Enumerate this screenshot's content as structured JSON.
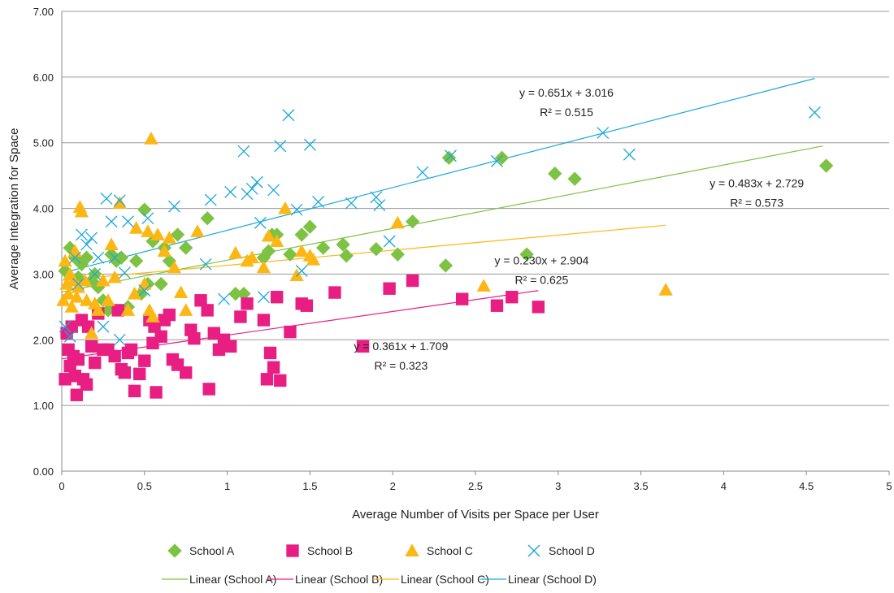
{
  "chart_data": {
    "type": "scatter",
    "title": "",
    "xlabel": "Average Number of Visits per Space per User",
    "ylabel": "Average Integration for Space",
    "xlim": [
      0,
      5
    ],
    "ylim": [
      0,
      7
    ],
    "x_ticks": [
      0,
      0.5,
      1,
      1.5,
      2,
      2.5,
      3,
      3.5,
      4,
      4.5,
      5
    ],
    "x_tick_labels": [
      "0",
      "0.5",
      "1",
      "1.5",
      "2",
      "2.5",
      "3",
      "3.5",
      "4",
      "4.5",
      "5"
    ],
    "y_ticks": [
      0,
      1,
      2,
      3,
      4,
      5,
      6,
      7
    ],
    "y_tick_labels": [
      "0.00",
      "1.00",
      "2.00",
      "3.00",
      "4.00",
      "5.00",
      "6.00",
      "7.00"
    ],
    "grid": "horizontal",
    "legend_position": "bottom",
    "series": [
      {
        "name": "School A",
        "marker": "diamond",
        "color": "#7dc242",
        "points": [
          [
            0.02,
            3.05
          ],
          [
            0.05,
            3.4
          ],
          [
            0.08,
            3.25
          ],
          [
            0.1,
            2.95
          ],
          [
            0.12,
            3.15
          ],
          [
            0.15,
            3.25
          ],
          [
            0.18,
            2.9
          ],
          [
            0.2,
            3.0
          ],
          [
            0.22,
            2.8
          ],
          [
            0.25,
            2.6
          ],
          [
            0.28,
            2.45
          ],
          [
            0.3,
            3.3
          ],
          [
            0.33,
            3.2
          ],
          [
            0.36,
            3.25
          ],
          [
            0.4,
            2.5
          ],
          [
            0.45,
            3.2
          ],
          [
            0.48,
            2.7
          ],
          [
            0.5,
            3.98
          ],
          [
            0.52,
            2.85
          ],
          [
            0.55,
            3.5
          ],
          [
            0.6,
            2.85
          ],
          [
            0.62,
            3.4
          ],
          [
            0.65,
            3.2
          ],
          [
            0.7,
            3.6
          ],
          [
            0.75,
            3.4
          ],
          [
            0.88,
            3.85
          ],
          [
            1.05,
            2.7
          ],
          [
            1.1,
            2.7
          ],
          [
            1.22,
            3.25
          ],
          [
            1.25,
            3.35
          ],
          [
            1.27,
            3.6
          ],
          [
            1.3,
            3.6
          ],
          [
            1.38,
            3.3
          ],
          [
            1.45,
            3.6
          ],
          [
            1.5,
            3.72
          ],
          [
            1.58,
            3.4
          ],
          [
            1.7,
            3.45
          ],
          [
            1.72,
            3.28
          ],
          [
            1.9,
            3.38
          ],
          [
            2.03,
            3.3
          ],
          [
            2.12,
            3.8
          ],
          [
            2.32,
            3.13
          ],
          [
            2.34,
            4.77
          ],
          [
            2.66,
            4.77
          ],
          [
            2.81,
            3.3
          ],
          [
            2.98,
            4.53
          ],
          [
            3.1,
            4.45
          ],
          [
            4.62,
            4.65
          ]
        ],
        "trendline": {
          "slope": 0.483,
          "intercept": 2.729,
          "x_range": [
            0,
            4.6
          ]
        }
      },
      {
        "name": "School B",
        "marker": "square",
        "color": "#e91e83",
        "points": [
          [
            0.02,
            1.4
          ],
          [
            0.03,
            2.1
          ],
          [
            0.04,
            1.85
          ],
          [
            0.05,
            1.6
          ],
          [
            0.06,
            2.2
          ],
          [
            0.07,
            1.75
          ],
          [
            0.08,
            1.45
          ],
          [
            0.09,
            1.16
          ],
          [
            0.1,
            1.7
          ],
          [
            0.12,
            2.3
          ],
          [
            0.13,
            1.4
          ],
          [
            0.15,
            1.32
          ],
          [
            0.16,
            2.2
          ],
          [
            0.18,
            1.9
          ],
          [
            0.2,
            1.65
          ],
          [
            0.22,
            2.4
          ],
          [
            0.25,
            1.85
          ],
          [
            0.28,
            1.85
          ],
          [
            0.32,
            1.75
          ],
          [
            0.34,
            2.45
          ],
          [
            0.36,
            1.55
          ],
          [
            0.38,
            1.5
          ],
          [
            0.4,
            1.8
          ],
          [
            0.42,
            1.85
          ],
          [
            0.44,
            1.22
          ],
          [
            0.47,
            1.48
          ],
          [
            0.5,
            1.68
          ],
          [
            0.53,
            2.3
          ],
          [
            0.55,
            1.95
          ],
          [
            0.56,
            2.2
          ],
          [
            0.57,
            1.2
          ],
          [
            0.6,
            2.05
          ],
          [
            0.62,
            2.3
          ],
          [
            0.65,
            2.38
          ],
          [
            0.67,
            1.7
          ],
          [
            0.7,
            1.62
          ],
          [
            0.75,
            1.5
          ],
          [
            0.78,
            2.15
          ],
          [
            0.8,
            2.02
          ],
          [
            0.84,
            2.6
          ],
          [
            0.88,
            2.45
          ],
          [
            0.89,
            1.25
          ],
          [
            0.92,
            2.1
          ],
          [
            0.95,
            1.85
          ],
          [
            0.98,
            2.0
          ],
          [
            1.02,
            1.9
          ],
          [
            1.08,
            2.35
          ],
          [
            1.12,
            2.55
          ],
          [
            1.22,
            2.3
          ],
          [
            1.24,
            1.4
          ],
          [
            1.26,
            1.8
          ],
          [
            1.28,
            1.58
          ],
          [
            1.3,
            2.65
          ],
          [
            1.32,
            1.38
          ],
          [
            1.38,
            2.12
          ],
          [
            1.45,
            2.55
          ],
          [
            1.48,
            2.52
          ],
          [
            1.65,
            2.72
          ],
          [
            1.82,
            1.9
          ],
          [
            1.98,
            2.78
          ],
          [
            2.12,
            2.9
          ],
          [
            2.42,
            2.62
          ],
          [
            2.63,
            2.52
          ],
          [
            2.72,
            2.65
          ],
          [
            2.88,
            2.5
          ]
        ],
        "trendline": {
          "slope": 0.361,
          "intercept": 1.709,
          "x_range": [
            0,
            2.88
          ]
        }
      },
      {
        "name": "School C",
        "marker": "triangle",
        "color": "#fdb714",
        "points": [
          [
            0.01,
            2.6
          ],
          [
            0.02,
            3.2
          ],
          [
            0.03,
            2.85
          ],
          [
            0.04,
            2.7
          ],
          [
            0.05,
            3.0
          ],
          [
            0.06,
            2.5
          ],
          [
            0.07,
            2.9
          ],
          [
            0.08,
            3.35
          ],
          [
            0.09,
            2.65
          ],
          [
            0.1,
            2.8
          ],
          [
            0.11,
            4.02
          ],
          [
            0.12,
            3.95
          ],
          [
            0.14,
            2.9
          ],
          [
            0.15,
            2.6
          ],
          [
            0.18,
            2.1
          ],
          [
            0.2,
            2.55
          ],
          [
            0.22,
            2.45
          ],
          [
            0.25,
            2.9
          ],
          [
            0.28,
            2.6
          ],
          [
            0.3,
            3.45
          ],
          [
            0.32,
            2.95
          ],
          [
            0.35,
            4.08
          ],
          [
            0.4,
            2.45
          ],
          [
            0.44,
            2.7
          ],
          [
            0.45,
            3.7
          ],
          [
            0.5,
            2.85
          ],
          [
            0.52,
            3.65
          ],
          [
            0.53,
            2.45
          ],
          [
            0.54,
            5.06
          ],
          [
            0.55,
            2.35
          ],
          [
            0.58,
            3.6
          ],
          [
            0.62,
            3.35
          ],
          [
            0.65,
            3.55
          ],
          [
            0.68,
            3.1
          ],
          [
            0.72,
            2.72
          ],
          [
            0.75,
            2.45
          ],
          [
            0.82,
            3.65
          ],
          [
            1.05,
            3.32
          ],
          [
            1.12,
            3.2
          ],
          [
            1.15,
            3.25
          ],
          [
            1.22,
            3.1
          ],
          [
            1.25,
            3.58
          ],
          [
            1.3,
            3.5
          ],
          [
            1.35,
            4.0
          ],
          [
            1.42,
            2.98
          ],
          [
            1.45,
            3.35
          ],
          [
            1.5,
            3.28
          ],
          [
            1.52,
            3.22
          ],
          [
            2.03,
            3.78
          ],
          [
            2.55,
            2.82
          ],
          [
            3.65,
            2.76
          ]
        ],
        "trendline": {
          "slope": 0.23,
          "intercept": 2.904,
          "x_range": [
            0,
            3.65
          ]
        }
      },
      {
        "name": "School D",
        "marker": "x",
        "color": "#1aa9d8",
        "points": [
          [
            0.02,
            2.2
          ],
          [
            0.05,
            2.05
          ],
          [
            0.08,
            3.25
          ],
          [
            0.1,
            2.85
          ],
          [
            0.12,
            3.6
          ],
          [
            0.15,
            3.45
          ],
          [
            0.18,
            3.55
          ],
          [
            0.2,
            3.0
          ],
          [
            0.22,
            3.25
          ],
          [
            0.25,
            2.2
          ],
          [
            0.27,
            4.15
          ],
          [
            0.3,
            3.8
          ],
          [
            0.32,
            3.25
          ],
          [
            0.35,
            4.12
          ],
          [
            0.35,
            2.0
          ],
          [
            0.38,
            3.02
          ],
          [
            0.4,
            3.8
          ],
          [
            0.5,
            2.75
          ],
          [
            0.52,
            3.85
          ],
          [
            0.68,
            4.03
          ],
          [
            0.87,
            3.15
          ],
          [
            0.9,
            4.13
          ],
          [
            0.98,
            2.62
          ],
          [
            1.02,
            4.25
          ],
          [
            1.1,
            4.87
          ],
          [
            1.12,
            4.22
          ],
          [
            1.15,
            4.3
          ],
          [
            1.18,
            4.4
          ],
          [
            1.2,
            3.78
          ],
          [
            1.22,
            2.65
          ],
          [
            1.28,
            4.28
          ],
          [
            1.32,
            4.95
          ],
          [
            1.37,
            5.42
          ],
          [
            1.42,
            3.98
          ],
          [
            1.45,
            3.05
          ],
          [
            1.5,
            4.97
          ],
          [
            1.55,
            4.1
          ],
          [
            1.75,
            4.08
          ],
          [
            1.9,
            4.17
          ],
          [
            1.92,
            4.05
          ],
          [
            1.98,
            3.5
          ],
          [
            2.18,
            4.55
          ],
          [
            2.35,
            4.8
          ],
          [
            2.63,
            4.72
          ],
          [
            3.27,
            5.15
          ],
          [
            3.43,
            4.82
          ],
          [
            4.55,
            5.46
          ]
        ],
        "trendline": {
          "slope": 0.651,
          "intercept": 3.016,
          "x_range": [
            0,
            4.55
          ]
        }
      }
    ],
    "legend_trendlines": [
      {
        "name": "Linear (School A)",
        "color": "#7dc242"
      },
      {
        "name": "Linear (School B)",
        "color": "#e91e83"
      },
      {
        "name": "Linear (School C)",
        "color": "#fdb714"
      },
      {
        "name": "Linear (School D)",
        "color": "#1aa9d8"
      }
    ],
    "annotations": [
      {
        "equation": "y = 0.651x + 3.016",
        "r2": "R² = 0.515",
        "series": "School D",
        "at": [
          3.05,
          5.7
        ]
      },
      {
        "equation": "y = 0.483x + 2.729",
        "r2": "R² = 0.573",
        "series": "School A",
        "at": [
          4.2,
          4.32
        ]
      },
      {
        "equation": "y = 0.230x + 2.904",
        "r2": "R² = 0.625",
        "series": "School C",
        "at": [
          2.9,
          3.15
        ]
      },
      {
        "equation": "y = 0.361x + 1.709",
        "r2": "R² = 0.323",
        "series": "School B",
        "at": [
          2.05,
          1.84
        ]
      }
    ]
  }
}
